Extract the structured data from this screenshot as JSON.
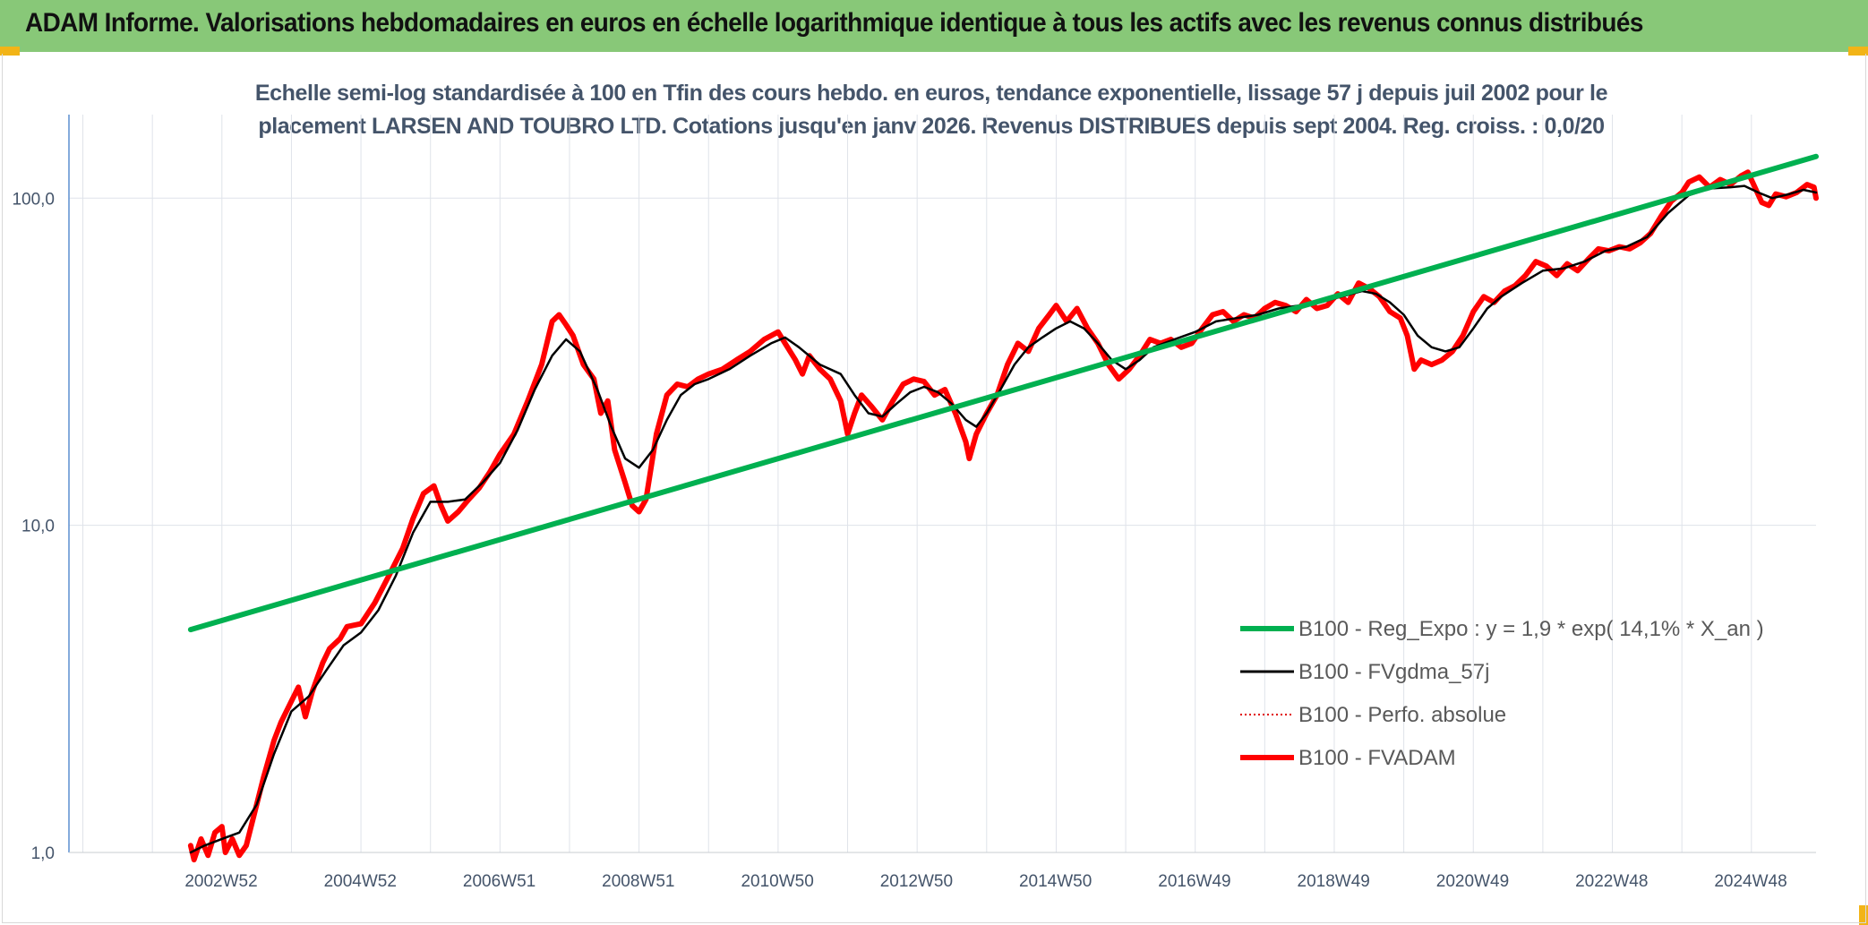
{
  "banner": {
    "title": "ADAM Informe. Valorisations hebdomadaires en euros en échelle logarithmique identique à tous les actifs avec les revenus connus distribués",
    "bg_color": "#88c878"
  },
  "chart_title": {
    "line1": "Echelle semi-log standardisée à 100 en Tfin des cours hebdo. en euros, tendance exponentielle, lissage 57 j depuis juil 2002 pour le",
    "line2": "placement LARSEN AND TOUBRO LTD. Cotations jusqu'en janv 2026. Revenus DISTRIBUES depuis sept 2004. Reg. croiss. : 0,0/20"
  },
  "chart_data": {
    "type": "line",
    "y_scale": "log",
    "ylim": [
      1,
      180
    ],
    "xlim": [
      2000.8,
      2025.93
    ],
    "grid": true,
    "legend_position": "bottom-right",
    "y_ticks": [
      {
        "value": 1,
        "label": "1,0"
      },
      {
        "value": 10,
        "label": "10,0"
      },
      {
        "value": 100,
        "label": "100,0"
      }
    ],
    "x_ticks": [
      {
        "value": 2002.99,
        "label": "2002W52"
      },
      {
        "value": 2004.99,
        "label": "2004W52"
      },
      {
        "value": 2006.99,
        "label": "2006W51"
      },
      {
        "value": 2008.99,
        "label": "2008W51"
      },
      {
        "value": 2010.99,
        "label": "2010W50"
      },
      {
        "value": 2012.99,
        "label": "2012W50"
      },
      {
        "value": 2014.99,
        "label": "2014W50"
      },
      {
        "value": 2016.99,
        "label": "2016W49"
      },
      {
        "value": 2018.99,
        "label": "2018W49"
      },
      {
        "value": 2020.99,
        "label": "2020W49"
      },
      {
        "value": 2022.99,
        "label": "2022W48"
      },
      {
        "value": 2024.99,
        "label": "2024W48"
      }
    ],
    "series": [
      {
        "name": "B100 - Reg_Expo : y = 1,9 * exp( 14,1% *  X_an )",
        "color": "#00b050",
        "style": "solid-thick",
        "points": [
          [
            2002.55,
            4.8
          ],
          [
            2025.93,
            134
          ]
        ]
      },
      {
        "name": "B100 - FVgdma_57j",
        "color": "#000000",
        "style": "solid",
        "points": [
          [
            2002.55,
            1.0
          ],
          [
            2002.75,
            1.05
          ],
          [
            2003.0,
            1.1
          ],
          [
            2003.25,
            1.15
          ],
          [
            2003.5,
            1.4
          ],
          [
            2003.75,
            2.0
          ],
          [
            2004.0,
            2.7
          ],
          [
            2004.25,
            3.0
          ],
          [
            2004.5,
            3.6
          ],
          [
            2004.75,
            4.3
          ],
          [
            2005.0,
            4.7
          ],
          [
            2005.25,
            5.5
          ],
          [
            2005.5,
            7.0
          ],
          [
            2005.75,
            9.5
          ],
          [
            2006.0,
            11.8
          ],
          [
            2006.25,
            11.8
          ],
          [
            2006.5,
            12.0
          ],
          [
            2006.75,
            13.5
          ],
          [
            2007.0,
            15.5
          ],
          [
            2007.25,
            19.5
          ],
          [
            2007.5,
            26.0
          ],
          [
            2007.75,
            33.0
          ],
          [
            2007.95,
            37.0
          ],
          [
            2008.15,
            34.0
          ],
          [
            2008.4,
            26.0
          ],
          [
            2008.6,
            20.0
          ],
          [
            2008.8,
            16.0
          ],
          [
            2009.0,
            15.0
          ],
          [
            2009.2,
            17.0
          ],
          [
            2009.4,
            21.0
          ],
          [
            2009.6,
            25.0
          ],
          [
            2009.8,
            27.0
          ],
          [
            2010.0,
            28.0
          ],
          [
            2010.3,
            30.0
          ],
          [
            2010.6,
            33.0
          ],
          [
            2010.9,
            36.0
          ],
          [
            2011.1,
            37.5
          ],
          [
            2011.3,
            35.0
          ],
          [
            2011.6,
            31.0
          ],
          [
            2011.9,
            29.0
          ],
          [
            2012.1,
            25.0
          ],
          [
            2012.3,
            22.0
          ],
          [
            2012.5,
            21.5
          ],
          [
            2012.7,
            23.5
          ],
          [
            2012.9,
            25.5
          ],
          [
            2013.1,
            26.5
          ],
          [
            2013.3,
            25.5
          ],
          [
            2013.5,
            23.5
          ],
          [
            2013.7,
            21.0
          ],
          [
            2013.85,
            20.0
          ],
          [
            2014.0,
            22.0
          ],
          [
            2014.2,
            26.0
          ],
          [
            2014.4,
            31.0
          ],
          [
            2014.6,
            35.0
          ],
          [
            2014.8,
            37.5
          ],
          [
            2015.0,
            40.0
          ],
          [
            2015.2,
            42.0
          ],
          [
            2015.4,
            40.0
          ],
          [
            2015.6,
            36.0
          ],
          [
            2015.8,
            32.0
          ],
          [
            2016.0,
            30.0
          ],
          [
            2016.2,
            32.0
          ],
          [
            2016.4,
            35.0
          ],
          [
            2016.7,
            37.0
          ],
          [
            2017.0,
            39.0
          ],
          [
            2017.3,
            42.0
          ],
          [
            2017.6,
            43.0
          ],
          [
            2017.9,
            44.0
          ],
          [
            2018.2,
            46.0
          ],
          [
            2018.5,
            47.0
          ],
          [
            2018.8,
            48.0
          ],
          [
            2019.1,
            50.0
          ],
          [
            2019.4,
            52.0
          ],
          [
            2019.6,
            51.0
          ],
          [
            2019.8,
            48.0
          ],
          [
            2020.0,
            44.0
          ],
          [
            2020.2,
            38.0
          ],
          [
            2020.4,
            35.0
          ],
          [
            2020.6,
            34.0
          ],
          [
            2020.8,
            35.0
          ],
          [
            2021.0,
            40.0
          ],
          [
            2021.2,
            46.0
          ],
          [
            2021.4,
            50.0
          ],
          [
            2021.7,
            55.0
          ],
          [
            2022.0,
            60.0
          ],
          [
            2022.3,
            61.0
          ],
          [
            2022.6,
            64.0
          ],
          [
            2022.9,
            69.0
          ],
          [
            2023.2,
            71.0
          ],
          [
            2023.5,
            76.0
          ],
          [
            2023.8,
            90.0
          ],
          [
            2024.1,
            102.0
          ],
          [
            2024.4,
            107.0
          ],
          [
            2024.7,
            108.0
          ],
          [
            2024.9,
            109.0
          ],
          [
            2025.1,
            104.0
          ],
          [
            2025.3,
            100.0
          ],
          [
            2025.55,
            103.0
          ],
          [
            2025.75,
            106.0
          ],
          [
            2025.93,
            104.0
          ]
        ]
      },
      {
        "name": "B100 - Perfo. absolue",
        "color": "#e00000",
        "style": "dotted",
        "points": []
      },
      {
        "name": "B100 - FVADAM",
        "color": "#ff0000",
        "style": "solid-thick",
        "points": [
          [
            2002.55,
            1.05
          ],
          [
            2002.6,
            0.95
          ],
          [
            2002.7,
            1.1
          ],
          [
            2002.8,
            0.98
          ],
          [
            2002.9,
            1.15
          ],
          [
            2003.0,
            1.2
          ],
          [
            2003.05,
            1.0
          ],
          [
            2003.15,
            1.1
          ],
          [
            2003.25,
            0.98
          ],
          [
            2003.35,
            1.05
          ],
          [
            2003.5,
            1.4
          ],
          [
            2003.6,
            1.7
          ],
          [
            2003.75,
            2.2
          ],
          [
            2003.85,
            2.5
          ],
          [
            2004.0,
            2.9
          ],
          [
            2004.1,
            3.2
          ],
          [
            2004.2,
            2.6
          ],
          [
            2004.3,
            3.1
          ],
          [
            2004.45,
            3.8
          ],
          [
            2004.55,
            4.2
          ],
          [
            2004.7,
            4.5
          ],
          [
            2004.8,
            4.9
          ],
          [
            2005.0,
            5.0
          ],
          [
            2005.2,
            5.8
          ],
          [
            2005.4,
            7.0
          ],
          [
            2005.6,
            8.5
          ],
          [
            2005.75,
            10.5
          ],
          [
            2005.9,
            12.5
          ],
          [
            2006.05,
            13.2
          ],
          [
            2006.15,
            11.5
          ],
          [
            2006.25,
            10.3
          ],
          [
            2006.4,
            11.0
          ],
          [
            2006.55,
            12.0
          ],
          [
            2006.7,
            13.0
          ],
          [
            2006.85,
            14.5
          ],
          [
            2007.0,
            16.5
          ],
          [
            2007.2,
            19.0
          ],
          [
            2007.4,
            24.0
          ],
          [
            2007.6,
            31.0
          ],
          [
            2007.75,
            42.0
          ],
          [
            2007.85,
            44.0
          ],
          [
            2007.95,
            41.0
          ],
          [
            2008.05,
            38.0
          ],
          [
            2008.2,
            31.0
          ],
          [
            2008.35,
            28.0
          ],
          [
            2008.45,
            22.0
          ],
          [
            2008.55,
            24.0
          ],
          [
            2008.65,
            17.0
          ],
          [
            2008.8,
            13.5
          ],
          [
            2008.9,
            11.5
          ],
          [
            2009.0,
            11.0
          ],
          [
            2009.1,
            12.0
          ],
          [
            2009.25,
            19.0
          ],
          [
            2009.4,
            25.0
          ],
          [
            2009.55,
            27.0
          ],
          [
            2009.7,
            26.5
          ],
          [
            2009.85,
            28.0
          ],
          [
            2010.0,
            29.0
          ],
          [
            2010.2,
            30.0
          ],
          [
            2010.4,
            32.0
          ],
          [
            2010.6,
            34.0
          ],
          [
            2010.8,
            37.0
          ],
          [
            2011.0,
            39.0
          ],
          [
            2011.1,
            36.0
          ],
          [
            2011.25,
            32.0
          ],
          [
            2011.35,
            29.0
          ],
          [
            2011.45,
            33.0
          ],
          [
            2011.6,
            30.0
          ],
          [
            2011.75,
            28.0
          ],
          [
            2011.9,
            24.0
          ],
          [
            2012.0,
            19.0
          ],
          [
            2012.1,
            22.0
          ],
          [
            2012.2,
            25.0
          ],
          [
            2012.35,
            23.0
          ],
          [
            2012.5,
            21.0
          ],
          [
            2012.65,
            24.0
          ],
          [
            2012.8,
            27.0
          ],
          [
            2012.95,
            28.0
          ],
          [
            2013.1,
            27.5
          ],
          [
            2013.25,
            25.0
          ],
          [
            2013.4,
            26.0
          ],
          [
            2013.55,
            22.0
          ],
          [
            2013.7,
            18.0
          ],
          [
            2013.75,
            16.0
          ],
          [
            2013.85,
            19.0
          ],
          [
            2014.0,
            22.0
          ],
          [
            2014.15,
            25.0
          ],
          [
            2014.3,
            31.0
          ],
          [
            2014.45,
            36.0
          ],
          [
            2014.6,
            34.0
          ],
          [
            2014.75,
            40.0
          ],
          [
            2014.9,
            44.0
          ],
          [
            2015.0,
            47.0
          ],
          [
            2015.15,
            42.0
          ],
          [
            2015.3,
            46.0
          ],
          [
            2015.45,
            40.0
          ],
          [
            2015.6,
            36.0
          ],
          [
            2015.75,
            31.0
          ],
          [
            2015.9,
            28.0
          ],
          [
            2016.05,
            30.0
          ],
          [
            2016.2,
            33.0
          ],
          [
            2016.35,
            37.0
          ],
          [
            2016.5,
            36.0
          ],
          [
            2016.65,
            37.0
          ],
          [
            2016.8,
            35.0
          ],
          [
            2016.95,
            36.0
          ],
          [
            2017.1,
            40.0
          ],
          [
            2017.25,
            44.0
          ],
          [
            2017.4,
            45.0
          ],
          [
            2017.55,
            42.0
          ],
          [
            2017.7,
            44.0
          ],
          [
            2017.85,
            43.0
          ],
          [
            2018.0,
            46.0
          ],
          [
            2018.15,
            48.0
          ],
          [
            2018.3,
            47.0
          ],
          [
            2018.45,
            45.0
          ],
          [
            2018.6,
            49.0
          ],
          [
            2018.75,
            46.0
          ],
          [
            2018.9,
            47.0
          ],
          [
            2019.05,
            51.0
          ],
          [
            2019.2,
            48.0
          ],
          [
            2019.35,
            55.0
          ],
          [
            2019.5,
            53.0
          ],
          [
            2019.65,
            50.0
          ],
          [
            2019.8,
            45.0
          ],
          [
            2019.95,
            43.0
          ],
          [
            2020.05,
            38.0
          ],
          [
            2020.15,
            30.0
          ],
          [
            2020.25,
            32.0
          ],
          [
            2020.4,
            31.0
          ],
          [
            2020.55,
            32.0
          ],
          [
            2020.7,
            34.0
          ],
          [
            2020.85,
            38.0
          ],
          [
            2021.0,
            45.0
          ],
          [
            2021.15,
            50.0
          ],
          [
            2021.3,
            48.0
          ],
          [
            2021.45,
            52.0
          ],
          [
            2021.6,
            54.0
          ],
          [
            2021.75,
            58.0
          ],
          [
            2021.9,
            64.0
          ],
          [
            2022.05,
            62.0
          ],
          [
            2022.2,
            58.0
          ],
          [
            2022.35,
            63.0
          ],
          [
            2022.5,
            60.0
          ],
          [
            2022.65,
            65.0
          ],
          [
            2022.8,
            70.0
          ],
          [
            2022.95,
            69.0
          ],
          [
            2023.1,
            71.0
          ],
          [
            2023.25,
            70.0
          ],
          [
            2023.4,
            73.0
          ],
          [
            2023.55,
            78.0
          ],
          [
            2023.7,
            88.0
          ],
          [
            2023.85,
            98.0
          ],
          [
            2024.0,
            104.0
          ],
          [
            2024.1,
            112.0
          ],
          [
            2024.25,
            116.0
          ],
          [
            2024.4,
            108.0
          ],
          [
            2024.55,
            114.0
          ],
          [
            2024.7,
            110.0
          ],
          [
            2024.85,
            117.0
          ],
          [
            2024.95,
            120.0
          ],
          [
            2025.05,
            108.0
          ],
          [
            2025.15,
            97.0
          ],
          [
            2025.25,
            95.0
          ],
          [
            2025.35,
            103.0
          ],
          [
            2025.5,
            101.0
          ],
          [
            2025.65,
            104.0
          ],
          [
            2025.8,
            110.0
          ],
          [
            2025.9,
            108.0
          ],
          [
            2025.93,
            100.0
          ]
        ]
      }
    ]
  }
}
